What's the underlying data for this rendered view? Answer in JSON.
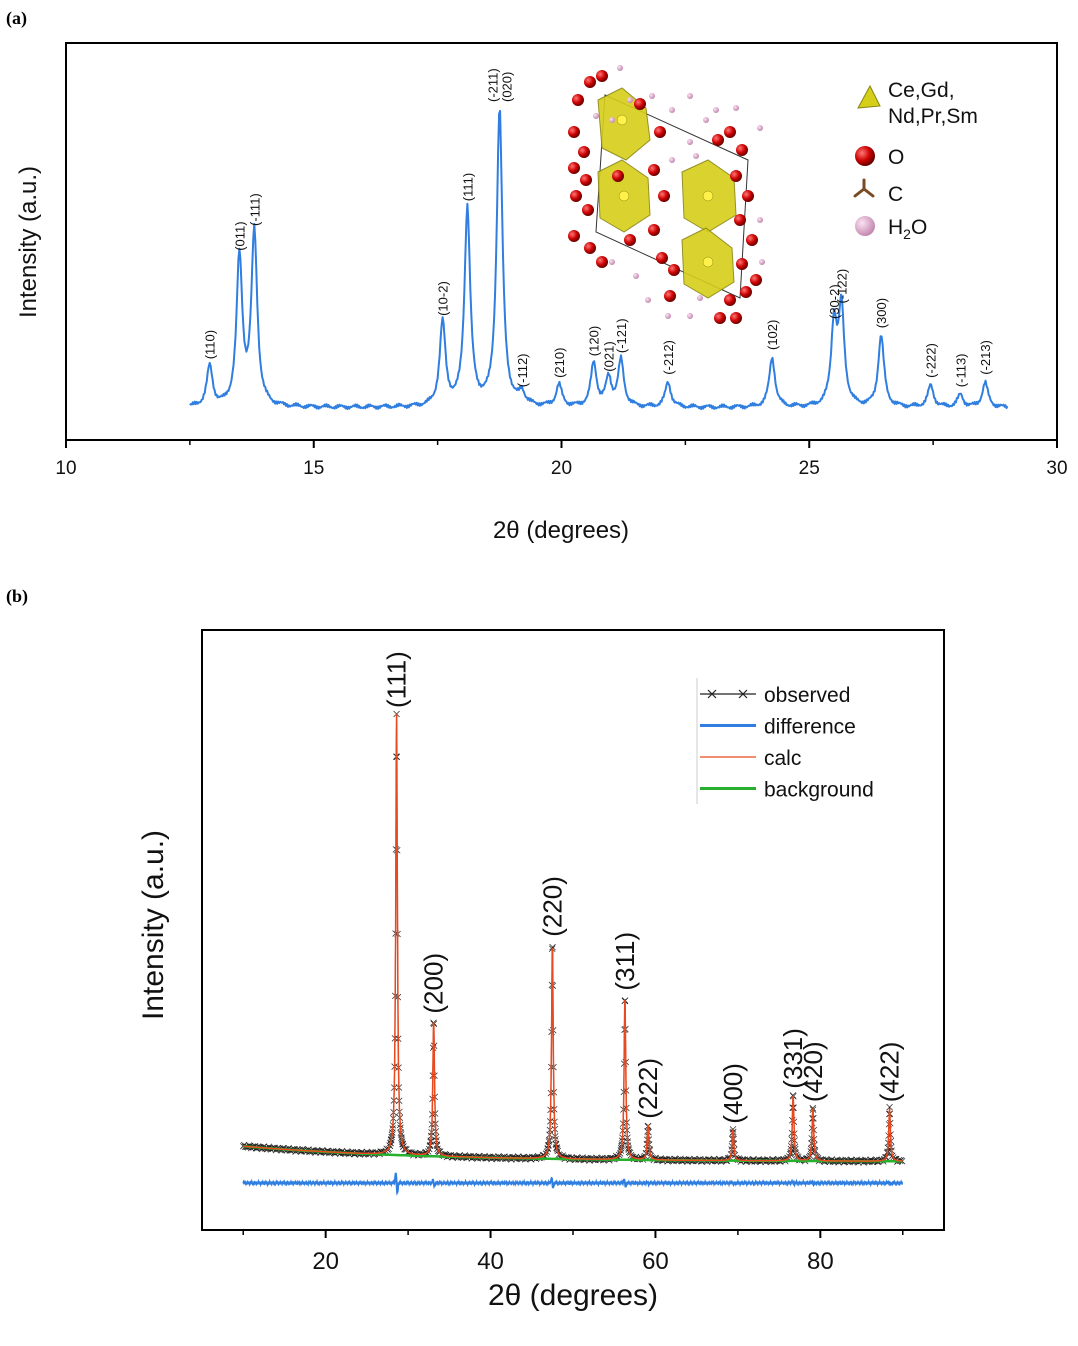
{
  "panel_labels": {
    "a": "(a)",
    "b": "(b)"
  },
  "chart_data": [
    {
      "type": "line",
      "panel": "a",
      "title": "",
      "xlabel": "2θ (degrees)",
      "ylabel": "Intensity (a.u.)",
      "xlim": [
        10,
        30
      ],
      "ylim": [
        0,
        100
      ],
      "xticks": [
        "10",
        "15",
        "20",
        "25",
        "30"
      ],
      "xtick_values": [
        10,
        15,
        20,
        25,
        30
      ],
      "line_color": "#2f7ee0",
      "baseline": 4,
      "peaks": [
        {
          "x": 12.9,
          "y": 17,
          "label": "(110)"
        },
        {
          "x": 13.5,
          "y": 52,
          "label": "(011)"
        },
        {
          "x": 13.8,
          "y": 60,
          "label": "(-111)"
        },
        {
          "x": 17.6,
          "y": 31,
          "label": "(10-2)"
        },
        {
          "x": 18.1,
          "y": 68,
          "label": "(111)"
        },
        {
          "x": 18.75,
          "y": 100,
          "label": "(-211)\n(020)"
        },
        {
          "x": 19.2,
          "y": 8,
          "label": "(-112)"
        },
        {
          "x": 19.95,
          "y": 11,
          "label": "(210)"
        },
        {
          "x": 20.65,
          "y": 18,
          "label": "(120)"
        },
        {
          "x": 20.95,
          "y": 13,
          "label": "(021)"
        },
        {
          "x": 21.2,
          "y": 19,
          "label": "(-121)"
        },
        {
          "x": 22.15,
          "y": 12,
          "label": "(-212)"
        },
        {
          "x": 24.25,
          "y": 20,
          "label": "(102)"
        },
        {
          "x": 25.5,
          "y": 30,
          "label": "(30-2)"
        },
        {
          "x": 25.65,
          "y": 35,
          "label": "(-122)"
        },
        {
          "x": 26.45,
          "y": 27,
          "label": "(300)"
        },
        {
          "x": 27.45,
          "y": 11,
          "label": "(-222)"
        },
        {
          "x": 28.05,
          "y": 8,
          "label": "(-113)"
        },
        {
          "x": 28.55,
          "y": 12,
          "label": "(-213)"
        }
      ],
      "legend": [
        {
          "icon": "yellow-polyhedron-icon",
          "text": "Ce,Gd,\nNd,Pr,Sm",
          "color": "#d6cf19"
        },
        {
          "icon": "red-sphere-icon",
          "text": "O",
          "color": "#cc0000"
        },
        {
          "icon": "carbon-bond-icon",
          "text": "C",
          "color": "#7a4a22"
        },
        {
          "icon": "pink-sphere-icon",
          "text": "H2O",
          "color": "#d6a4c4"
        }
      ],
      "legend_position": "top-right",
      "inset": "crystal-structure"
    },
    {
      "type": "line",
      "panel": "b",
      "title": "",
      "xlabel": "2θ (degrees)",
      "ylabel": "Intensity (a.u.)",
      "xlim": [
        5,
        95
      ],
      "ylim": [
        -12,
        100
      ],
      "xticks": [
        "20",
        "40",
        "60",
        "80"
      ],
      "xtick_values": [
        20,
        40,
        60,
        80
      ],
      "peaks": [
        {
          "x": 28.6,
          "y": 100,
          "label": "(111)"
        },
        {
          "x": 33.1,
          "y": 31,
          "label": "(200)"
        },
        {
          "x": 47.5,
          "y": 49,
          "label": "(220)"
        },
        {
          "x": 56.3,
          "y": 37,
          "label": "(311)"
        },
        {
          "x": 59.1,
          "y": 8,
          "label": "(222)"
        },
        {
          "x": 69.4,
          "y": 7,
          "label": "(400)"
        },
        {
          "x": 76.7,
          "y": 15,
          "label": "(331)"
        },
        {
          "x": 79.1,
          "y": 12,
          "label": "(420)"
        },
        {
          "x": 88.4,
          "y": 12,
          "label": "(422)"
        }
      ],
      "series": [
        {
          "name": "observed",
          "color": "#222222"
        },
        {
          "name": "difference",
          "color": "#2f7ee0"
        },
        {
          "name": "calc",
          "color": "#e8491f"
        },
        {
          "name": "background",
          "color": "#27b02e"
        }
      ],
      "legend_position": "top-right"
    }
  ]
}
